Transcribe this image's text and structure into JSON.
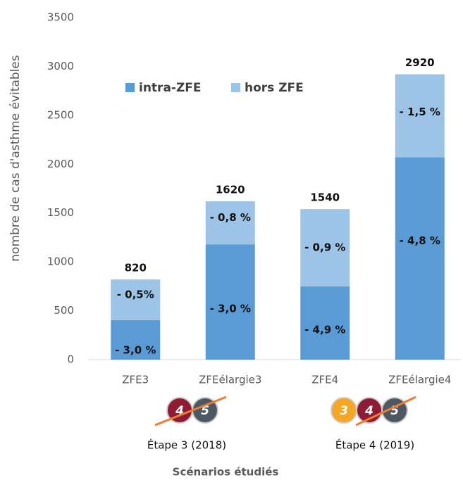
{
  "chart_data": {
    "type": "stacked_bar",
    "y_label": "nombre de cas d'asthme évitables",
    "x_label": "Scénarios étudiés",
    "categories": [
      "ZFE3",
      "ZFEélargie3",
      "ZFE4",
      "ZFEélargie4"
    ],
    "series": [
      {
        "name": "intra-ZFE",
        "color": "#5b9bd5",
        "values": [
          405,
          1180,
          750,
          2070
        ],
        "segment_labels": [
          "- 3,0 %",
          "- 3,0 %",
          "- 4,9 %",
          "- 4,8 %"
        ]
      },
      {
        "name": "hors ZFE",
        "color": "#9dc3e6",
        "values": [
          415,
          440,
          790,
          850
        ],
        "segment_labels": [
          "- 0,5%",
          "- 0,8 %",
          "- 0,9 %",
          "- 1,5 %"
        ]
      }
    ],
    "totals": [
      820,
      1620,
      1540,
      2920
    ],
    "ylim": [
      0,
      3500
    ],
    "yticks": [
      0,
      500,
      1000,
      1500,
      2000,
      2500,
      3000,
      3500
    ],
    "grid": false,
    "legend": "top",
    "steps": [
      {
        "label": "Étape 3 (2018)",
        "badges": [
          "4",
          "5"
        ]
      },
      {
        "label": "Étape 4 (2019)",
        "badges": [
          "3",
          "4",
          "5"
        ]
      }
    ]
  }
}
